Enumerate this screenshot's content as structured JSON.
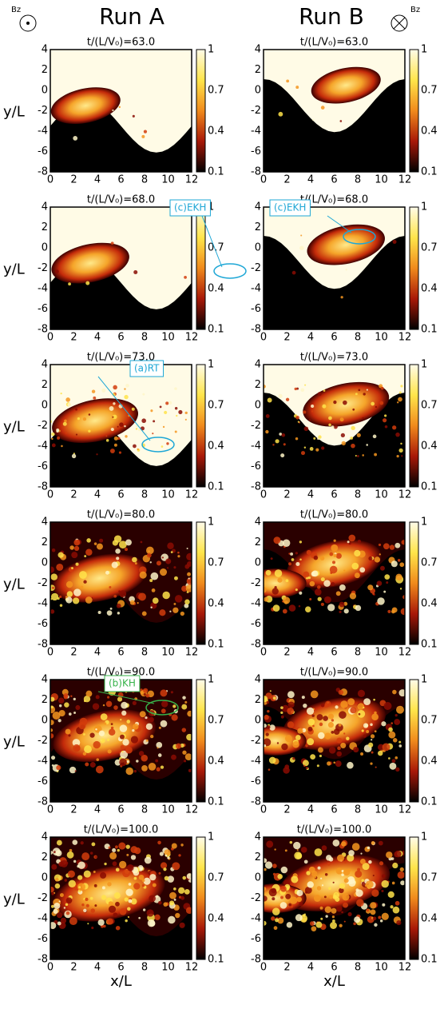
{
  "header": {
    "run_a": "Run A",
    "run_b": "Run B",
    "bz_left": "Bz",
    "bz_right": "Bz"
  },
  "axes": {
    "y_label": "y/L",
    "x_label": "x/L",
    "x_ticks": [
      "0",
      "2",
      "4",
      "6",
      "8",
      "10",
      "12"
    ],
    "y_ticks": [
      "4",
      "2",
      "0",
      "-2",
      "-4",
      "-6",
      "-8"
    ],
    "colorbar_ticks": [
      "1",
      "0.7",
      "0.4",
      "0.1"
    ]
  },
  "rows": [
    {
      "left": {
        "title": "t/(L/V₀)=63.0"
      },
      "right": {
        "title": "t/(L/V₀)=63.0"
      }
    },
    {
      "left": {
        "title": "t/(L/V₀)=68.0",
        "annotation": "(c)EKH"
      },
      "right": {
        "title": "t/(L/V₀)=68.0",
        "annotation": "(c)EKH"
      }
    },
    {
      "left": {
        "title": "t/(L/V₀)=73.0",
        "annotation": "(a)RT"
      },
      "right": {
        "title": "t/(L/V₀)=73.0"
      }
    },
    {
      "left": {
        "title": "t/(L/V₀)=80.0"
      },
      "right": {
        "title": "t/(L/V₀)=80.0"
      }
    },
    {
      "left": {
        "title": "t/(L/V₀)=90.0",
        "annotation": "(b)KH"
      },
      "right": {
        "title": "t/(L/V₀)=90.0"
      }
    },
    {
      "left": {
        "title": "t/(L/V₀)=100.0"
      },
      "right": {
        "title": "t/(L/V₀)=100.0"
      }
    }
  ]
}
